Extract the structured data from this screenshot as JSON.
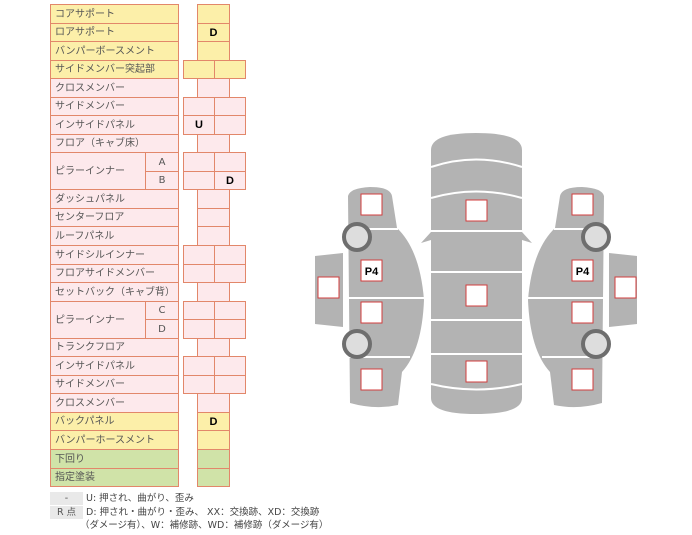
{
  "colors": {
    "yellow": "#fcefa9",
    "pink": "#fde9ec",
    "green": "#d0e3a8",
    "border": "#e2876a",
    "body": "#b3b3b3",
    "marker": "#d23c3c"
  },
  "rows": [
    {
      "label": "コアサポート",
      "color": "y",
      "cols": 1,
      "values": [
        ""
      ]
    },
    {
      "label": "ロアサポート",
      "color": "y",
      "cols": 1,
      "values": [
        "D"
      ]
    },
    {
      "label": "バンパーボースメント",
      "color": "y",
      "cols": 1,
      "values": [
        ""
      ]
    },
    {
      "label": "サイドメンバー突起部",
      "color": "y",
      "cols": 2,
      "values": [
        "",
        ""
      ]
    },
    {
      "label": "クロスメンバー",
      "color": "p",
      "cols": 1,
      "values": [
        ""
      ]
    },
    {
      "label": "サイドメンバー",
      "color": "p",
      "cols": 2,
      "values": [
        "",
        ""
      ]
    },
    {
      "label": "インサイドパネル",
      "color": "p",
      "cols": 2,
      "values": [
        "U",
        ""
      ]
    },
    {
      "label": "フロア（キャブ床）",
      "color": "p",
      "cols": 1,
      "values": [
        ""
      ]
    },
    {
      "label": "ピラーインナー",
      "sub": "A",
      "color": "p",
      "cols": 2,
      "values": [
        "",
        ""
      ]
    },
    {
      "sub": "B",
      "color": "p",
      "cols": 2,
      "values": [
        "",
        "D"
      ]
    },
    {
      "label": "ダッシュパネル",
      "color": "p",
      "cols": 1,
      "values": [
        ""
      ]
    },
    {
      "label": "センターフロア",
      "color": "p",
      "cols": 1,
      "values": [
        ""
      ]
    },
    {
      "label": "ルーフパネル",
      "color": "p",
      "cols": 1,
      "values": [
        ""
      ]
    },
    {
      "label": "サイドシルインナー",
      "color": "p",
      "cols": 2,
      "values": [
        "",
        ""
      ]
    },
    {
      "label": "フロアサイドメンバー",
      "color": "p",
      "cols": 2,
      "values": [
        "",
        ""
      ]
    },
    {
      "label": "セットバック（キャブ背）",
      "color": "p",
      "cols": 1,
      "values": [
        ""
      ]
    },
    {
      "label": "ピラーインナー",
      "sub": "C",
      "color": "p",
      "cols": 2,
      "values": [
        "",
        ""
      ]
    },
    {
      "sub": "D",
      "color": "p",
      "cols": 2,
      "values": [
        "",
        ""
      ]
    },
    {
      "label": "トランクフロア",
      "color": "p",
      "cols": 1,
      "values": [
        ""
      ]
    },
    {
      "label": "インサイドパネル",
      "color": "p",
      "cols": 2,
      "values": [
        "",
        ""
      ]
    },
    {
      "label": "サイドメンバー",
      "color": "p",
      "cols": 2,
      "values": [
        "",
        ""
      ]
    },
    {
      "label": "クロスメンバー",
      "color": "p",
      "cols": 1,
      "values": [
        ""
      ]
    },
    {
      "label": "バックパネル",
      "color": "y",
      "cols": 1,
      "values": [
        "D"
      ]
    },
    {
      "label": "バンパーホースメント",
      "color": "y",
      "cols": 1,
      "values": [
        ""
      ]
    },
    {
      "label": "下回り",
      "color": "g",
      "cols": 1,
      "values": [
        ""
      ]
    },
    {
      "label": "指定塗装",
      "color": "g",
      "cols": 1,
      "values": [
        ""
      ]
    }
  ],
  "diagram": {
    "left_p_label": "P4",
    "right_p_label": "P4"
  },
  "legend": {
    "k1": "-",
    "t1": "U: 押され、曲がり、歪み",
    "k2": "R 点",
    "t2": "D: 押され・曲がり・歪み、 XX：交換跡、XD：交換跡",
    "t3": "（ダメージ有）、W：補修跡、WD：補修跡（ダメージ有）"
  }
}
